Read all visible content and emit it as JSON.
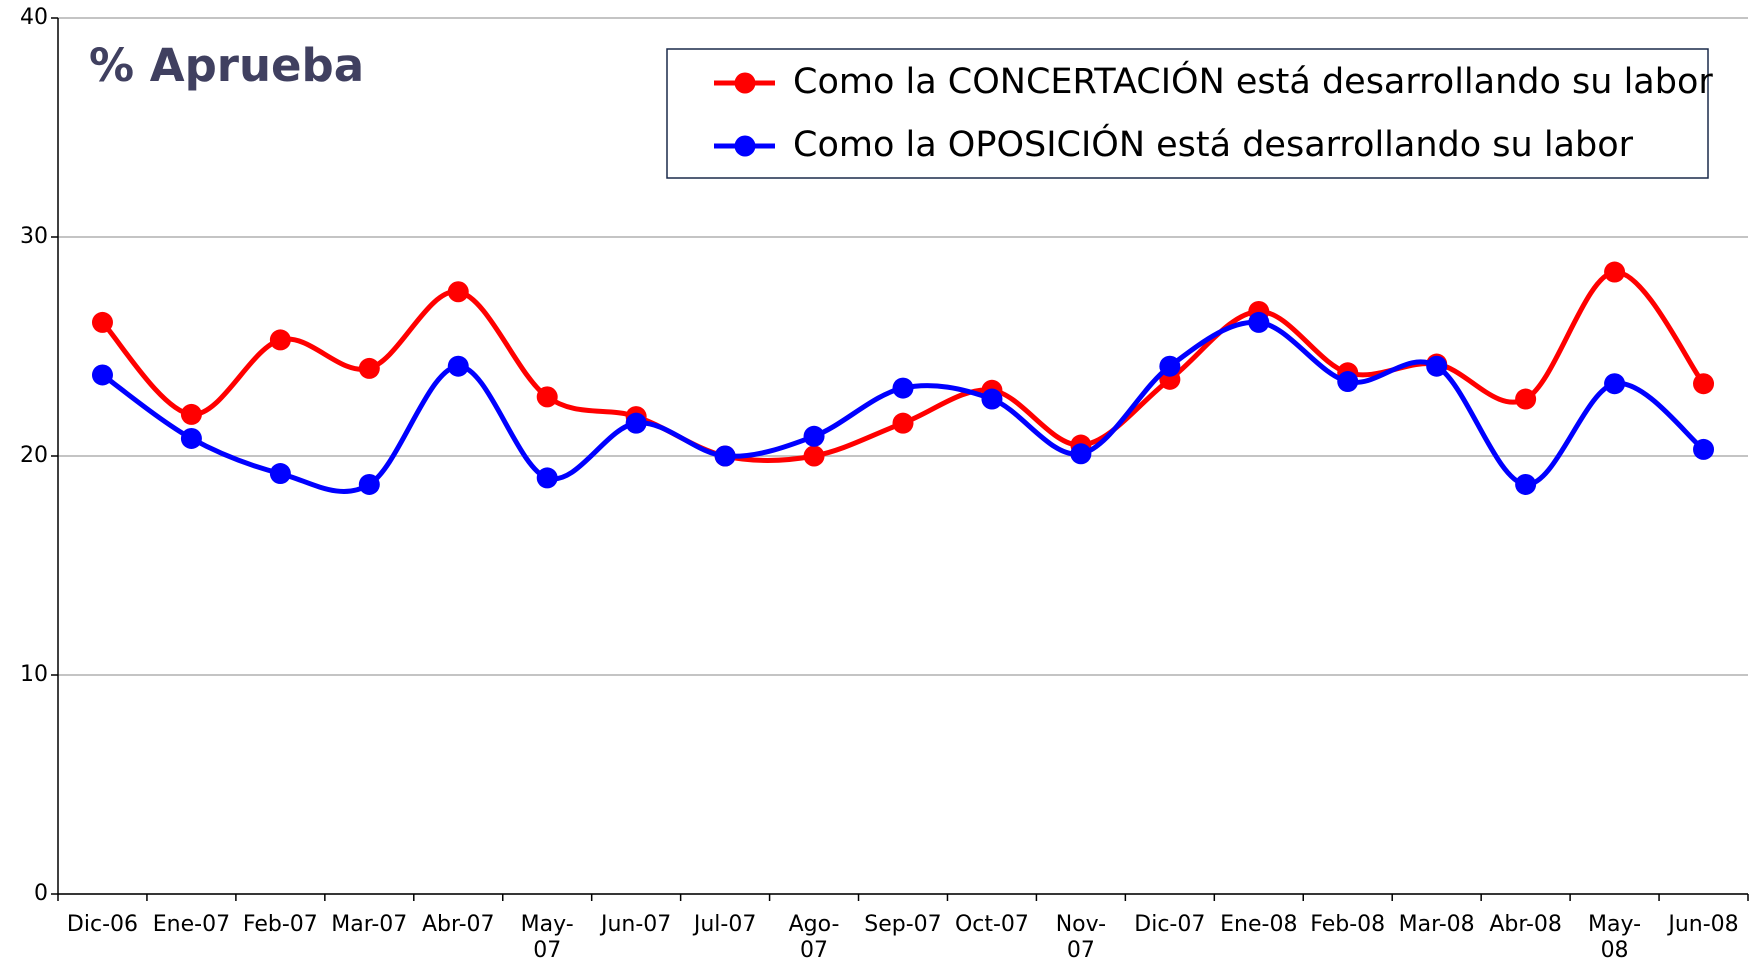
{
  "chart_data": {
    "type": "line",
    "title": "% Aprueba",
    "categories": [
      "Dic-06",
      "Ene-07",
      "Feb-07",
      "Mar-07",
      "Abr-07",
      "May-\n07",
      "Jun-07",
      "Jul-07",
      "Ago-\n07",
      "Sep-07",
      "Oct-07",
      "Nov-\n07",
      "Dic-07",
      "Ene-08",
      "Feb-08",
      "Mar-08",
      "Abr-08",
      "May-\n08",
      "Jun-08"
    ],
    "series": [
      {
        "name": "Como la CONCERTACIÓN está desarrollando su labor",
        "color": "#ff0000",
        "values": [
          26.1,
          21.9,
          25.3,
          24.0,
          27.5,
          22.7,
          21.8,
          20.0,
          20.0,
          21.5,
          23.0,
          20.5,
          23.5,
          26.6,
          23.8,
          24.2,
          22.6,
          28.4,
          23.3
        ]
      },
      {
        "name": "Como la OPOSICIÓN está desarrollando su labor",
        "color": "#0000ff",
        "values": [
          23.7,
          20.8,
          19.2,
          18.7,
          24.1,
          19.0,
          21.5,
          20.0,
          20.9,
          23.1,
          22.6,
          20.1,
          24.1,
          26.1,
          23.4,
          24.1,
          18.7,
          23.3,
          20.3
        ]
      }
    ],
    "ylim": [
      0,
      40
    ],
    "yticks": [
      0,
      10,
      20,
      30,
      40
    ],
    "grid": true,
    "legend": "top-right",
    "smooth": true
  }
}
